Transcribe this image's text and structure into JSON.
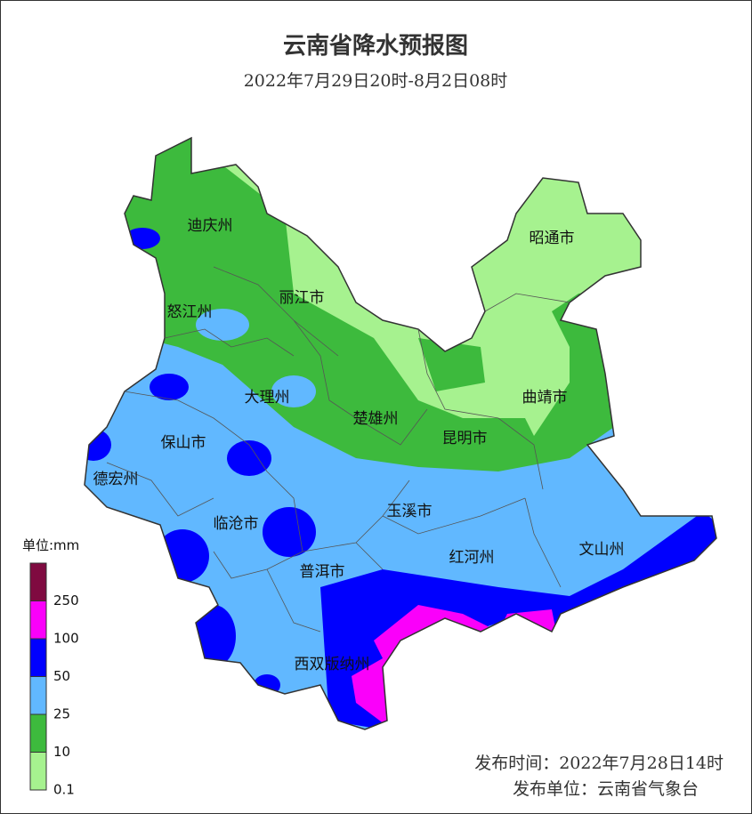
{
  "title": "云南省降水预报图",
  "subtitle": "2022年7月29日20时-8月2日08时",
  "regions": [
    "迪庆州",
    "丽江市",
    "怒江州",
    "昭通市",
    "大理州",
    "曲靖市",
    "楚雄州",
    "昆明市",
    "保山市",
    "德宏州",
    "临沧市",
    "玉溪市",
    "红河州",
    "文山州",
    "普洱市",
    "西双版纳州"
  ],
  "legend": {
    "unit": "单位:mm",
    "ticks": [
      0.1,
      10,
      25,
      50,
      100,
      250
    ],
    "colors": [
      "#a6f28f",
      "#3dba3d",
      "#61b8ff",
      "#0000fe",
      "#fa00fa",
      "#7f0a40"
    ]
  },
  "footer": {
    "issue_time": "发布时间：2022年7月28日14时",
    "issuer": "发布单位：云南省气象台"
  }
}
